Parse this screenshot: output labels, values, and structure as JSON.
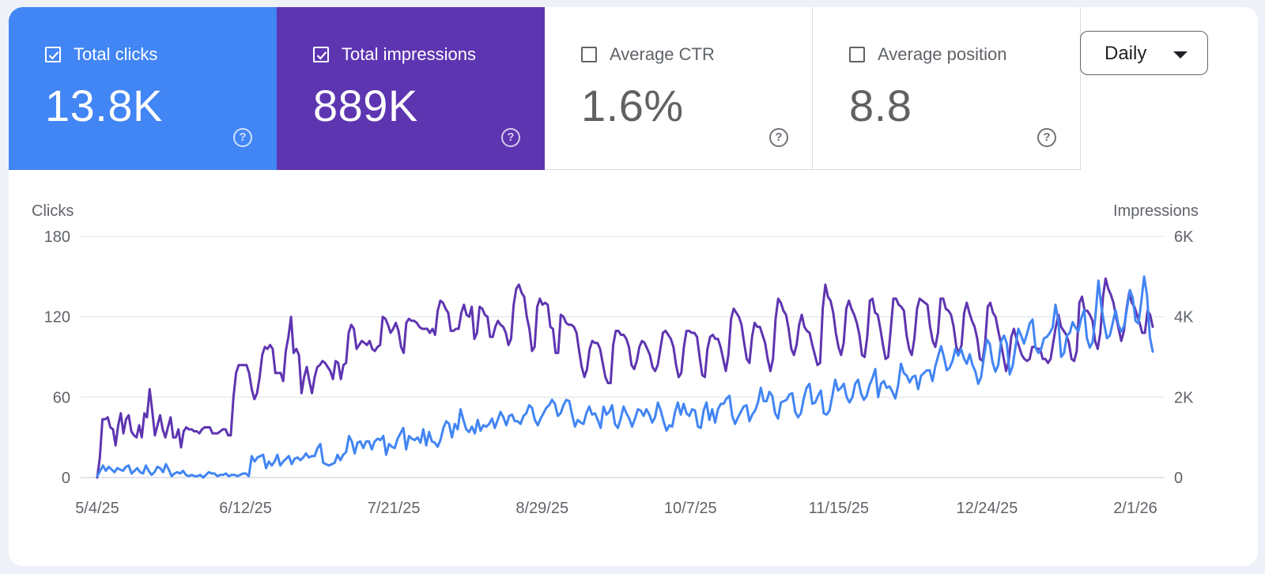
{
  "metrics": {
    "clicks": {
      "label": "Total clicks",
      "value": "13.8K",
      "checked": true,
      "color": "#4285f4"
    },
    "impressions": {
      "label": "Total impressions",
      "value": "889K",
      "checked": true,
      "color": "#5e35b1"
    },
    "ctr": {
      "label": "Average CTR",
      "value": "1.6%",
      "checked": false
    },
    "position": {
      "label": "Average position",
      "value": "8.8",
      "checked": false
    }
  },
  "help_icon": "help-circle-icon",
  "granularity": {
    "label": "Daily"
  },
  "chart_data": {
    "type": "line",
    "ylabel_left": "Clicks",
    "ylabel_right": "Impressions",
    "y_left_ticks": [
      "180",
      "120",
      "60",
      "0"
    ],
    "y_right_ticks": [
      "6K",
      "4K",
      "2K",
      "0"
    ],
    "ylim_left": [
      0,
      180
    ],
    "ylim_right": [
      0,
      6000
    ],
    "x_ticks": [
      "5/4/25",
      "6/12/25",
      "7/21/25",
      "8/29/25",
      "10/7/25",
      "11/15/25",
      "12/24/25",
      "2/1/26"
    ],
    "x_range": [
      "5/4/25",
      "2/6/26"
    ],
    "grid": true,
    "series": [
      {
        "name": "Clicks",
        "axis": "left",
        "color": "#4285f4",
        "values": [
          1,
          5,
          9,
          5,
          8,
          6,
          4,
          7,
          6,
          5,
          8,
          9,
          3,
          5,
          7,
          4,
          3,
          9,
          5,
          2,
          4,
          8,
          7,
          4,
          10,
          6,
          1,
          3,
          4,
          3,
          5,
          2,
          1,
          2,
          1,
          1,
          2,
          0,
          2,
          4,
          3,
          3,
          1,
          2,
          2,
          3,
          1,
          2,
          2,
          1,
          2,
          3,
          3,
          1,
          16,
          12,
          15,
          16,
          17,
          7,
          12,
          9,
          12,
          17,
          9,
          12,
          14,
          16,
          10,
          14,
          15,
          13,
          15,
          18,
          15,
          16,
          16,
          22,
          25,
          11,
          10,
          9,
          10,
          11,
          17,
          13,
          17,
          19,
          31,
          27,
          18,
          26,
          27,
          22,
          27,
          27,
          21,
          27,
          29,
          28,
          31,
          17,
          25,
          23,
          22,
          29,
          33,
          37,
          21,
          31,
          29,
          28,
          30,
          26,
          36,
          24,
          34,
          27,
          26,
          23,
          28,
          37,
          42,
          40,
          30,
          40,
          36,
          51,
          43,
          36,
          34,
          38,
          33,
          43,
          35,
          39,
          38,
          40,
          44,
          37,
          43,
          49,
          45,
          39,
          46,
          47,
          42,
          42,
          40,
          46,
          48,
          54,
          52,
          43,
          39,
          44,
          48,
          52,
          54,
          58,
          55,
          46,
          48,
          54,
          58,
          57,
          47,
          38,
          43,
          41,
          40,
          48,
          53,
          47,
          48,
          43,
          37,
          53,
          47,
          49,
          54,
          40,
          37,
          44,
          53,
          48,
          44,
          38,
          44,
          51,
          50,
          46,
          51,
          47,
          41,
          45,
          56,
          50,
          42,
          35,
          39,
          38,
          49,
          56,
          47,
          55,
          48,
          46,
          51,
          50,
          38,
          37,
          50,
          56,
          43,
          51,
          41,
          51,
          55,
          55,
          59,
          61,
          46,
          40,
          45,
          49,
          53,
          54,
          42,
          47,
          50,
          56,
          67,
          57,
          57,
          64,
          61,
          48,
          44,
          56,
          57,
          58,
          62,
          63,
          49,
          45,
          48,
          59,
          67,
          70,
          55,
          56,
          61,
          65,
          48,
          47,
          50,
          61,
          73,
          65,
          67,
          70,
          60,
          56,
          60,
          70,
          73,
          63,
          58,
          61,
          69,
          74,
          81,
          60,
          70,
          72,
          67,
          68,
          64,
          59,
          69,
          85,
          78,
          76,
          71,
          75,
          76,
          66,
          76,
          78,
          80,
          80,
          72,
          83,
          91,
          98,
          90,
          80,
          82,
          87,
          96,
          91,
          96,
          89,
          85,
          92,
          84,
          79,
          70,
          75,
          90,
          103,
          100,
          86,
          79,
          84,
          102,
          106,
          100,
          77,
          83,
          97,
          111,
          106,
          100,
          107,
          115,
          118,
          97,
          93,
          96,
          104,
          105,
          108,
          112,
          129,
          117,
          90,
          93,
          106,
          108,
          116,
          112,
          109,
          119,
          125,
          104,
          97,
          101,
          121,
          147,
          128,
          115,
          104,
          106,
          115,
          125,
          114,
          109,
          113,
          126,
          140,
          134,
          117,
          115,
          131,
          150,
          136,
          105,
          94
        ],
        "sampled_every": 1
      },
      {
        "name": "Impressions",
        "axis": "right",
        "color": "#5e35b1",
        "values": [
          0,
          500,
          1450,
          1450,
          1500,
          1250,
          1200,
          800,
          1300,
          1600,
          1100,
          1450,
          1550,
          1150,
          1050,
          1000,
          1300,
          1000,
          1600,
          1500,
          2200,
          1650,
          1050,
          1300,
          1550,
          1200,
          1000,
          1250,
          1500,
          1000,
          1000,
          1200,
          750,
          1150,
          1250,
          1200,
          1200,
          1150,
          1150,
          1100,
          1200,
          1250,
          1250,
          1250,
          1100,
          1100,
          1100,
          1150,
          1200,
          1200,
          1050,
          1050,
          2000,
          2600,
          2800,
          2800,
          2800,
          2800,
          2600,
          2200,
          1950,
          2100,
          2500,
          3050,
          3250,
          3200,
          3300,
          3200,
          2600,
          2600,
          2600,
          2400,
          3150,
          3500,
          4000,
          3100,
          3200,
          3050,
          2100,
          2500,
          2750,
          2400,
          2100,
          2500,
          2750,
          2800,
          2900,
          2850,
          2750,
          2650,
          2450,
          2900,
          2850,
          2450,
          2800,
          2850,
          3600,
          3800,
          3700,
          3200,
          3300,
          3400,
          3350,
          3300,
          3400,
          3200,
          3150,
          3250,
          3300,
          4000,
          3950,
          3800,
          3600,
          3700,
          3850,
          3650,
          3250,
          3100,
          3850,
          3950,
          3900,
          3900,
          3850,
          3750,
          3700,
          3700,
          3700,
          3600,
          3700,
          3550,
          4150,
          4400,
          4350,
          4200,
          4100,
          3650,
          3650,
          3700,
          3700,
          4100,
          4300,
          4050,
          4000,
          4250,
          3450,
          3600,
          4250,
          4200,
          4050,
          4000,
          3500,
          3500,
          3750,
          3900,
          3800,
          3750,
          3600,
          3300,
          3450,
          4300,
          4700,
          4800,
          4600,
          4500,
          4000,
          3700,
          3150,
          3250,
          4250,
          4450,
          4300,
          4350,
          4300,
          3750,
          3700,
          3100,
          3100,
          4050,
          4000,
          3850,
          3800,
          3800,
          3750,
          3600,
          3150,
          2750,
          2500,
          2700,
          3200,
          3400,
          3350,
          3350,
          3200,
          2850,
          2500,
          2350,
          2350,
          3300,
          3650,
          3650,
          3550,
          3550,
          3450,
          3250,
          2800,
          2700,
          2900,
          3250,
          3400,
          3350,
          3200,
          3050,
          2750,
          2650,
          2800,
          3200,
          3600,
          3650,
          3550,
          3450,
          3250,
          2800,
          2500,
          2600,
          3250,
          3650,
          3650,
          3600,
          3600,
          3500,
          3000,
          2550,
          2500,
          3200,
          3500,
          3550,
          3450,
          3450,
          3250,
          2950,
          2650,
          3050,
          3950,
          4200,
          4100,
          4000,
          3800,
          3350,
          2950,
          2850,
          3500,
          3850,
          3750,
          3750,
          3550,
          3350,
          2950,
          2650,
          2950,
          3950,
          4450,
          4350,
          4150,
          4050,
          3700,
          3200,
          3050,
          3300,
          3800,
          4050,
          3750,
          3650,
          3600,
          3300,
          3050,
          2800,
          2850,
          4200,
          4800,
          4500,
          4400,
          4100,
          3600,
          3250,
          3050,
          3350,
          4200,
          4400,
          4200,
          4050,
          3850,
          3550,
          3050,
          3000,
          3500,
          4400,
          4450,
          4100,
          4050,
          3700,
          3300,
          2950,
          3000,
          3700,
          4450,
          4450,
          4300,
          4250,
          4150,
          3550,
          3200,
          3050,
          3450,
          4200,
          4450,
          4400,
          4350,
          4300,
          3750,
          3400,
          3250,
          3600,
          4450,
          4450,
          4200,
          4150,
          4050,
          3750,
          3250,
          3100,
          3300,
          4100,
          4350,
          4100,
          3900,
          3750,
          3450,
          2950,
          2900,
          3350,
          4250,
          4350,
          4100,
          4000,
          3650,
          3350,
          3000,
          2650,
          2900,
          3500,
          3700,
          3450,
          3250,
          3050,
          2950,
          2900,
          2950,
          3250,
          3250,
          3200,
          3200,
          2950,
          2950,
          2850,
          2950,
          3350,
          3750,
          4050,
          3750,
          3650,
          3550,
          3350,
          2950,
          2900,
          3150,
          4350,
          4500,
          4150,
          4150,
          4050,
          3900,
          3400,
          3200,
          3600,
          4500,
          4950,
          4700,
          4550,
          4350,
          4000,
          3700,
          3400,
          3650,
          4200,
          4600,
          4350,
          4250,
          4050,
          3850,
          3600,
          3600,
          4150,
          4050,
          3750
        ],
        "sampled_every": 1
      }
    ]
  }
}
